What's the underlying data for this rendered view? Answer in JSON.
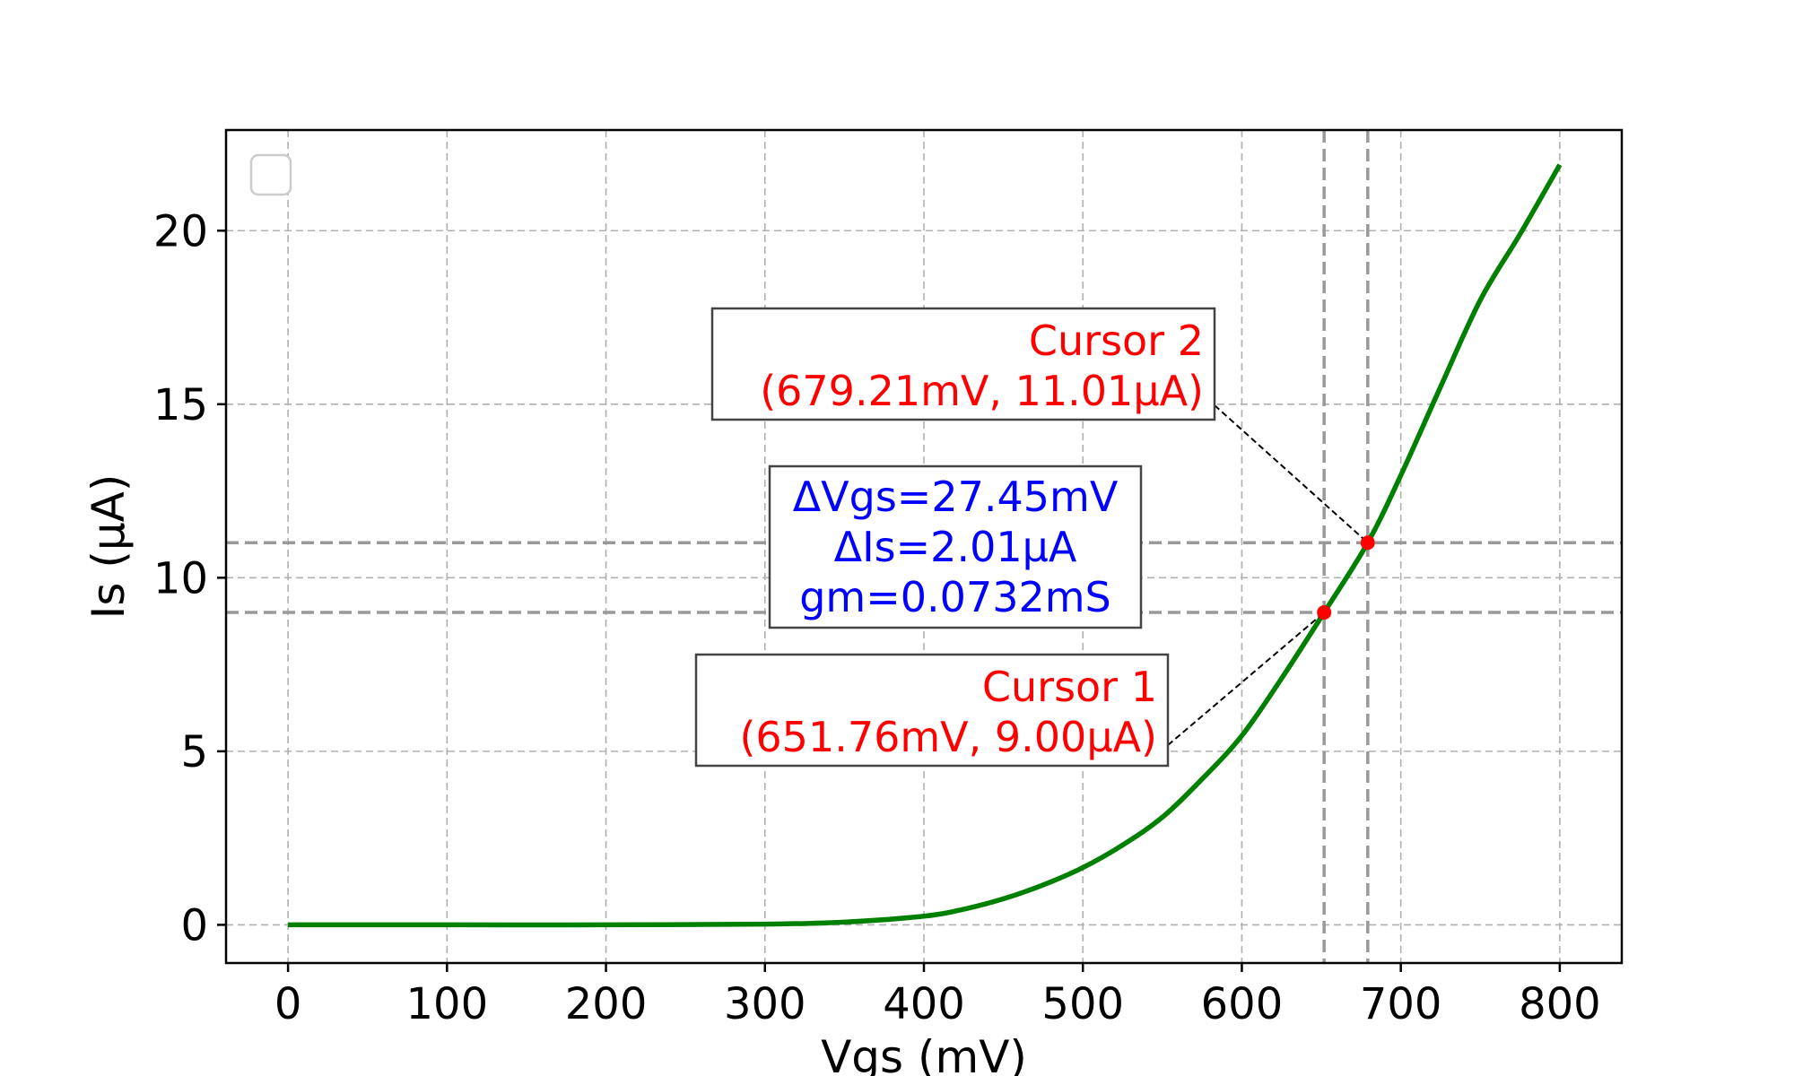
{
  "chart_data": {
    "type": "line",
    "xlabel": "Vgs (mV)",
    "ylabel": "Is (µA)",
    "xlim": [
      -39,
      839
    ],
    "ylim": [
      -1.1,
      22.9
    ],
    "x_ticks": [
      0,
      100,
      200,
      300,
      400,
      500,
      600,
      700,
      800
    ],
    "y_ticks": [
      0,
      5,
      10,
      15,
      20
    ],
    "grid": true,
    "legend": "top-left (empty)",
    "series": [
      {
        "color": "#008000",
        "x": [
          0,
          100,
          200,
          300,
          350,
          400,
          425,
          450,
          475,
          500,
          525,
          550,
          575,
          600,
          625,
          651.76,
          679.21,
          700,
          725,
          750,
          775,
          800
        ],
        "y": [
          0,
          0,
          0,
          0.02,
          0.08,
          0.25,
          0.45,
          0.75,
          1.15,
          1.65,
          2.3,
          3.1,
          4.2,
          5.45,
          7.1,
          9.0,
          11.01,
          12.95,
          15.5,
          18.0,
          19.9,
          21.9
        ]
      }
    ],
    "cursors": [
      {
        "label": "Cursor 1",
        "text": "(651.76mV, 9.00µA)",
        "x": 651.76,
        "y": 9.0,
        "color": "#ff0000"
      },
      {
        "label": "Cursor 2",
        "text": "(679.21mV, 11.01µA)",
        "x": 679.21,
        "y": 11.01,
        "color": "#ff0000"
      }
    ],
    "delta": {
      "lines": [
        "ΔVgs=27.45mV",
        "ΔIs=2.01µA",
        "gm=0.0732mS"
      ],
      "color": "#0000ff"
    }
  }
}
